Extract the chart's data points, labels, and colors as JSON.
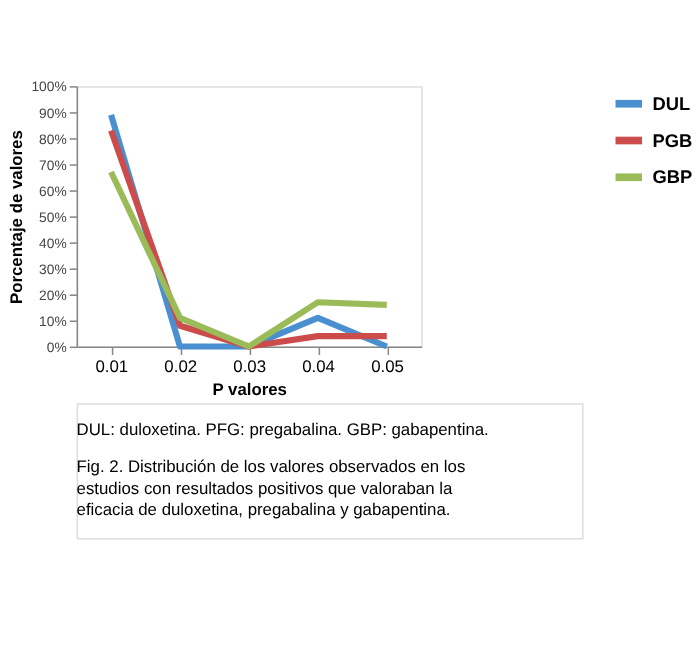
{
  "chart_data": {
    "type": "line",
    "categories": [
      "0.01",
      "0.02",
      "0.03",
      "0.04",
      "0.05"
    ],
    "series": [
      {
        "name": "DUL",
        "color": "#4a8fd0",
        "values": [
          89,
          0,
          0,
          11,
          0
        ]
      },
      {
        "name": "PGB",
        "color": "#cc4b4b",
        "values": [
          83,
          8,
          0,
          4,
          4
        ]
      },
      {
        "name": "GBP",
        "color": "#9bbb59",
        "values": [
          67,
          11,
          0,
          17,
          16
        ]
      }
    ],
    "xlabel": "P valores",
    "ylabel": "Porcentaje de valores",
    "ylim": [
      0,
      100
    ],
    "yticks": [
      {
        "value": 0,
        "label": "0%"
      },
      {
        "value": 10,
        "label": "10%"
      },
      {
        "value": 20,
        "label": "20%"
      },
      {
        "value": 30,
        "label": "30%"
      },
      {
        "value": 40,
        "label": "40%"
      },
      {
        "value": 50,
        "label": "50%"
      },
      {
        "value": 60,
        "label": "60%"
      },
      {
        "value": 70,
        "label": "70%"
      },
      {
        "value": 80,
        "label": "80%"
      },
      {
        "value": 90,
        "label": "90%"
      },
      {
        "value": 100,
        "label": "100%"
      }
    ],
    "legend": "right",
    "grid": false,
    "marker": "none",
    "line_style": "solid",
    "annotations": [
      "DUL: duloxetina. PFG: pregabalina. GBP: gabapentina.",
      "Fig. 2. Distribución de los valores observados en los estudios con resultados positivos que valoraban la eficacia de duloxetina, pregabalina y gabapentina."
    ]
  }
}
